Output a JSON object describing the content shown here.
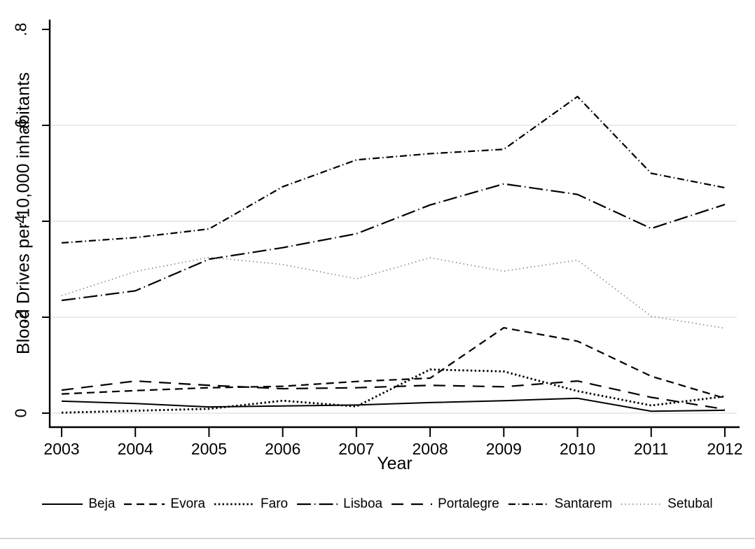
{
  "figure": {
    "background": "#ffffff",
    "bottom_border_color": "#d6d6d6",
    "grid_color": "#e3e3e3",
    "axis_color": "#000000"
  },
  "chart_data": {
    "type": "line",
    "title": "",
    "xlabel": "Year",
    "ylabel": "Blood Drives per 10,000 inhabitants",
    "x": [
      2003,
      2004,
      2005,
      2006,
      2007,
      2008,
      2009,
      2010,
      2011,
      2012
    ],
    "x_tick_labels": [
      "2003",
      "2004",
      "2005",
      "2006",
      "2007",
      "2008",
      "2009",
      "2010",
      "2011",
      "2012"
    ],
    "xlim": [
      2003,
      2012
    ],
    "ylim": [
      0,
      0.8
    ],
    "y_ticks": [
      {
        "value": 0,
        "label": "0",
        "grid": true
      },
      {
        "value": 0.2,
        "label": ".2",
        "grid": true
      },
      {
        "value": 0.4,
        "label": ".4",
        "grid": true
      },
      {
        "value": 0.6,
        "label": ".6",
        "grid": true
      },
      {
        "value": 0.8,
        "label": ".8",
        "grid": false
      }
    ],
    "legend_position": "bottom",
    "series": [
      {
        "name": "Beja",
        "line_style": "solid",
        "color": "#000000",
        "values": [
          0.025,
          0.02,
          0.013,
          0.015,
          0.017,
          0.022,
          0.026,
          0.031,
          0.004,
          0.006
        ]
      },
      {
        "name": "Evora",
        "line_style": "dash",
        "color": "#000000",
        "values": [
          0.04,
          0.047,
          0.053,
          0.056,
          0.066,
          0.073,
          0.178,
          0.15,
          0.077,
          0.031
        ]
      },
      {
        "name": "Faro",
        "line_style": "dot-bold",
        "color": "#000000",
        "values": [
          0.001,
          0.005,
          0.009,
          0.026,
          0.014,
          0.091,
          0.087,
          0.046,
          0.016,
          0.035
        ]
      },
      {
        "name": "Lisboa",
        "line_style": "longdash-dot",
        "color": "#000000",
        "values": [
          0.235,
          0.255,
          0.321,
          0.345,
          0.374,
          0.434,
          0.478,
          0.456,
          0.385,
          0.435
        ]
      },
      {
        "name": "Portalegre",
        "line_style": "longdash",
        "color": "#000000",
        "values": [
          0.048,
          0.067,
          0.058,
          0.051,
          0.053,
          0.058,
          0.055,
          0.067,
          0.033,
          0.008
        ]
      },
      {
        "name": "Santarem",
        "line_style": "dash-dot",
        "color": "#000000",
        "values": [
          0.355,
          0.366,
          0.384,
          0.472,
          0.528,
          0.541,
          0.55,
          0.66,
          0.5,
          0.47
        ]
      },
      {
        "name": "Setubal",
        "line_style": "fine-dot",
        "color": "#757575",
        "values": [
          0.245,
          0.295,
          0.325,
          0.31,
          0.28,
          0.324,
          0.296,
          0.319,
          0.202,
          0.177
        ]
      }
    ]
  }
}
